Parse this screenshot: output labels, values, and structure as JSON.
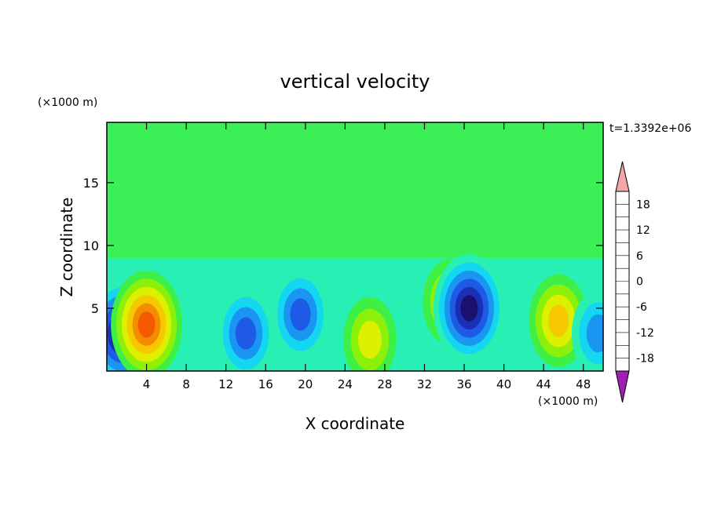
{
  "chart_data": {
    "type": "heatmap",
    "title": "vertical velocity",
    "xlabel": "X coordinate",
    "ylabel": "Z coordinate",
    "x_unit_label": "(×1000 m)",
    "y_unit_label": "(×1000 m)",
    "time_label": "t=1.3392e+06",
    "xlim": [
      0,
      50
    ],
    "ylim": [
      0,
      19.8
    ],
    "x_ticks": [
      4,
      8,
      12,
      16,
      20,
      24,
      28,
      32,
      36,
      40,
      44,
      48
    ],
    "x_tick_labels": [
      "4",
      "8",
      "12",
      "16",
      "20",
      "24",
      "28",
      "32",
      "36",
      "40",
      "44",
      "48"
    ],
    "y_ticks": [
      5,
      10,
      15
    ],
    "y_tick_labels": [
      "5",
      "10",
      "15"
    ],
    "colorbar": {
      "levels": [
        -21,
        -18,
        -15,
        -12,
        -9,
        -6,
        -3,
        0,
        3,
        6,
        9,
        12,
        15,
        18,
        21
      ],
      "tick_values": [
        18,
        12,
        6,
        0,
        -6,
        -12,
        -18
      ],
      "tick_labels": [
        "18",
        "12",
        "6",
        "0",
        "-6",
        "-12",
        "-18"
      ],
      "colors": [
        "#4b0e8c",
        "#1a1070",
        "#1b2fb5",
        "#1e5ae6",
        "#1a96f2",
        "#14d6f0",
        "#28f0b4",
        "#3ef046",
        "#8cf00a",
        "#dcf000",
        "#f5c800",
        "#f58c00",
        "#f55a00",
        "#e61e00"
      ],
      "under_color": "#a020b4",
      "over_color": "#f4a6a6"
    },
    "field_features": [
      {
        "x": 1.5,
        "z": 3.0,
        "w": -18,
        "desc": "strong downdraft"
      },
      {
        "x": 4.0,
        "z": 3.7,
        "w": 18,
        "desc": "strong updraft"
      },
      {
        "x": 14.0,
        "z": 3.0,
        "w": -12
      },
      {
        "x": 19.5,
        "z": 4.5,
        "w": -12
      },
      {
        "x": 26.5,
        "z": 2.5,
        "w": 9
      },
      {
        "x": 34.5,
        "z": 5.5,
        "w": 9
      },
      {
        "x": 36.5,
        "z": 5.0,
        "w": -18,
        "desc": "strong downdraft"
      },
      {
        "x": 45.5,
        "z": 4.0,
        "w": 12,
        "desc": "broad updraft"
      },
      {
        "x": 49.5,
        "z": 3.0,
        "w": -9
      }
    ]
  }
}
